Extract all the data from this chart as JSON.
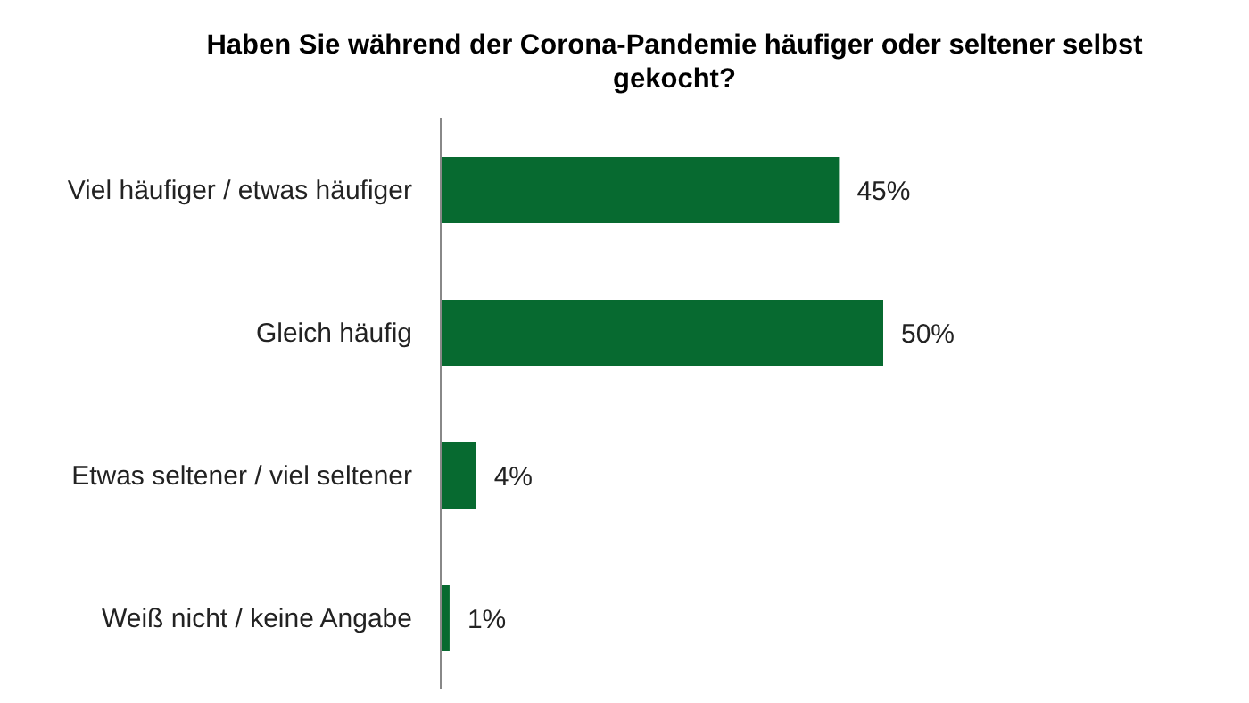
{
  "chart_data": {
    "type": "bar",
    "orientation": "horizontal",
    "title": "Haben Sie während der Corona-Pandemie häufiger oder seltener selbst gekocht?",
    "categories": [
      "Viel häufiger / etwas häufiger",
      "Gleich häufig",
      "Etwas seltener / viel seltener",
      "Weiß nicht / keine Angabe"
    ],
    "values": [
      45,
      50,
      4,
      1
    ],
    "value_labels": [
      "45%",
      "50%",
      "4%",
      "1%"
    ],
    "color": "#076a30",
    "grid": false,
    "legend": false
  }
}
